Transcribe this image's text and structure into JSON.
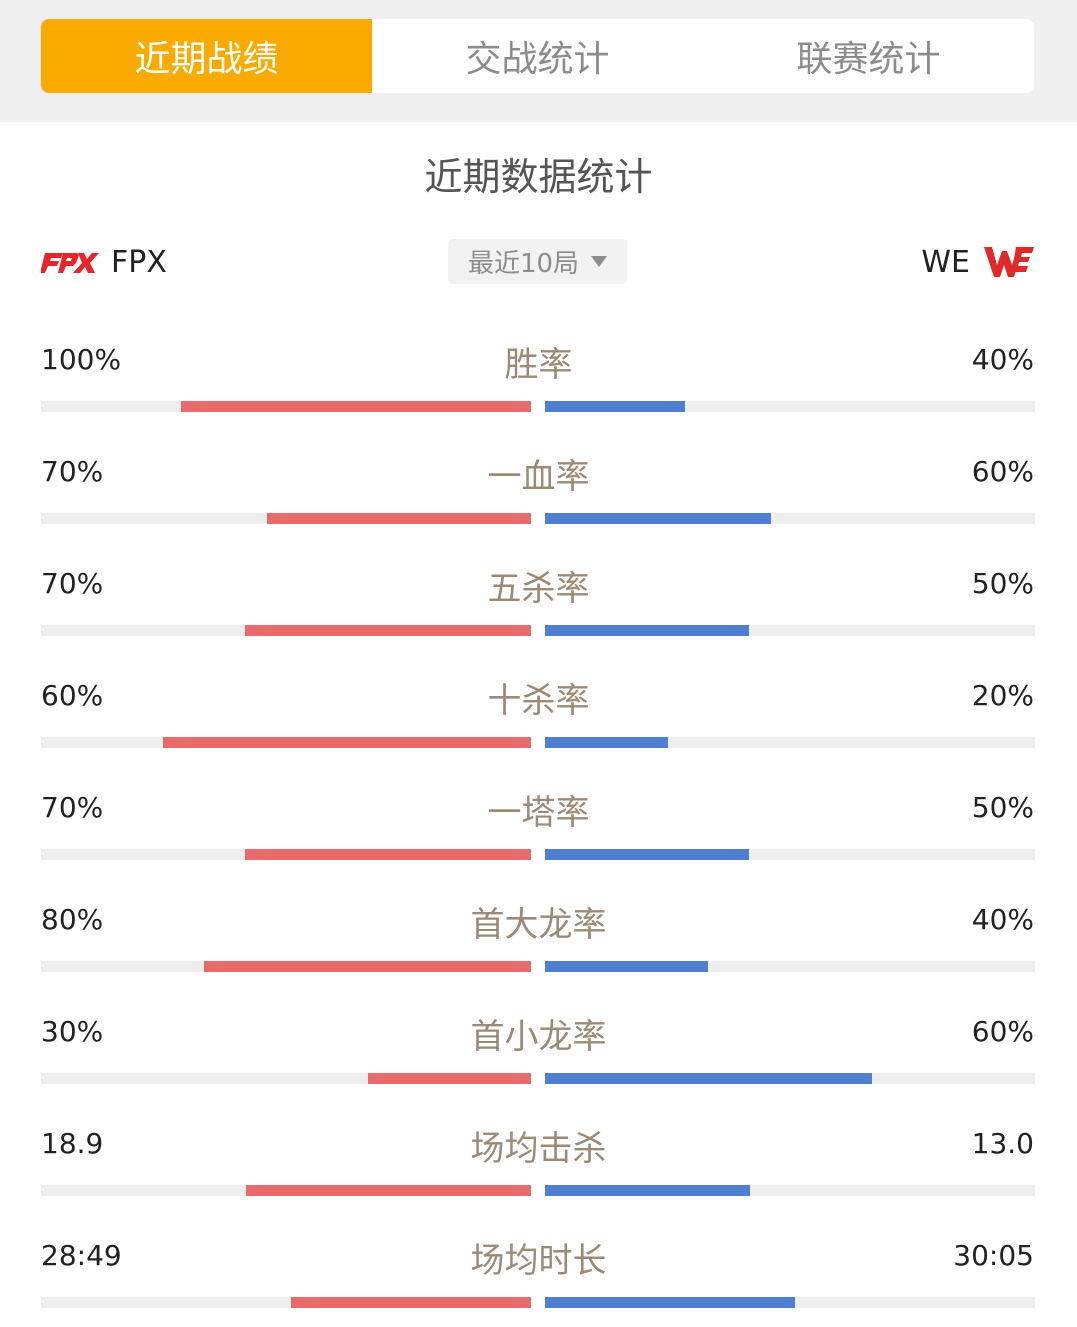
{
  "tabs": [
    {
      "label": "近期战绩",
      "active": true
    },
    {
      "label": "交战统计",
      "active": false
    },
    {
      "label": "联赛统计",
      "active": false
    }
  ],
  "section_title": "近期数据统计",
  "team_left": {
    "name": "FPX",
    "logo_icon": "fpx-logo",
    "color": "#e8232a"
  },
  "team_right": {
    "name": "WE",
    "logo_icon": "we-logo",
    "color": "#e02a2a"
  },
  "filter": {
    "label": "最近10局",
    "icon": "caret-down-icon"
  },
  "colors": {
    "left_bar": "#e96a6a",
    "right_bar": "#4f7fcf",
    "track": "#eeeeee",
    "accent": "#fbab00"
  },
  "stats": [
    {
      "label": "胜率",
      "left": "100%",
      "right": "40%",
      "left_fill": 0.714,
      "right_fill": 0.286
    },
    {
      "label": "一血率",
      "left": "70%",
      "right": "60%",
      "left_fill": 0.538,
      "right_fill": 0.462
    },
    {
      "label": "五杀率",
      "left": "70%",
      "right": "50%",
      "left_fill": 0.583,
      "right_fill": 0.417
    },
    {
      "label": "十杀率",
      "left": "60%",
      "right": "20%",
      "left_fill": 0.75,
      "right_fill": 0.25
    },
    {
      "label": "一塔率",
      "left": "70%",
      "right": "50%",
      "left_fill": 0.583,
      "right_fill": 0.417
    },
    {
      "label": "首大龙率",
      "left": "80%",
      "right": "40%",
      "left_fill": 0.667,
      "right_fill": 0.333
    },
    {
      "label": "首小龙率",
      "left": "30%",
      "right": "60%",
      "left_fill": 0.333,
      "right_fill": 0.667
    },
    {
      "label": "场均击杀",
      "left": "18.9",
      "right": "13.0",
      "left_fill": 0.581,
      "right_fill": 0.419
    },
    {
      "label": "场均时长",
      "left": "28:49",
      "right": "30:05",
      "left_fill": 0.49,
      "right_fill": 0.51
    }
  ]
}
